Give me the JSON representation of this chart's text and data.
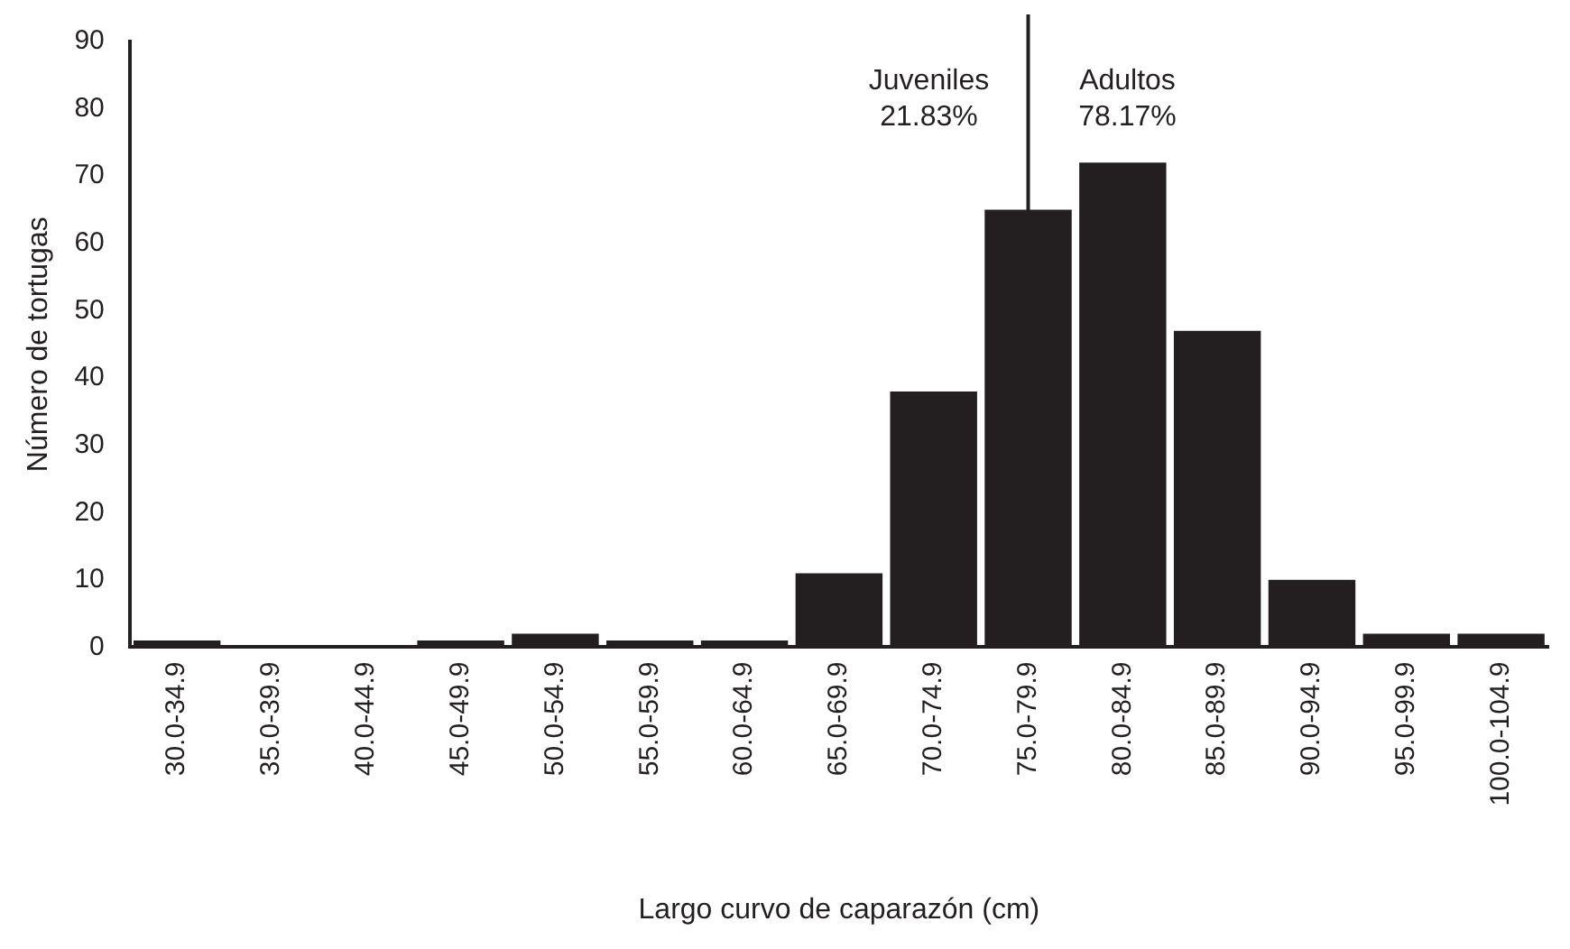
{
  "chart_data": {
    "type": "bar",
    "xlabel": "Largo curvo de caparazón (cm)",
    "ylabel": "Número de tortugas",
    "categories": [
      "30.0-34.9",
      "35.0-39.9",
      "40.0-44.9",
      "45.0-49.9",
      "50.0-54.9",
      "55.0-59.9",
      "60.0-64.9",
      "65.0-69.9",
      "70.0-74.9",
      "75.0-79.9",
      "80.0-84.9",
      "85.0-89.9",
      "90.0-94.9",
      "95.0-99.9",
      "100.0-104.9"
    ],
    "values": [
      1,
      0,
      0,
      1,
      2,
      1,
      1,
      11,
      38,
      65,
      72,
      47,
      10,
      2,
      2
    ],
    "color": "#231f20",
    "ylim": [
      0,
      90
    ],
    "yticks": [
      0,
      10,
      20,
      30,
      40,
      50,
      60,
      70,
      80,
      90
    ],
    "grid": false,
    "legend": false,
    "ref_lines": [
      {
        "axis": "x",
        "value": "75.0-79.9",
        "color": "#231f20"
      }
    ],
    "annotations": [
      "Juveniles\n21.83%",
      "Adultos\n78.17%"
    ]
  }
}
